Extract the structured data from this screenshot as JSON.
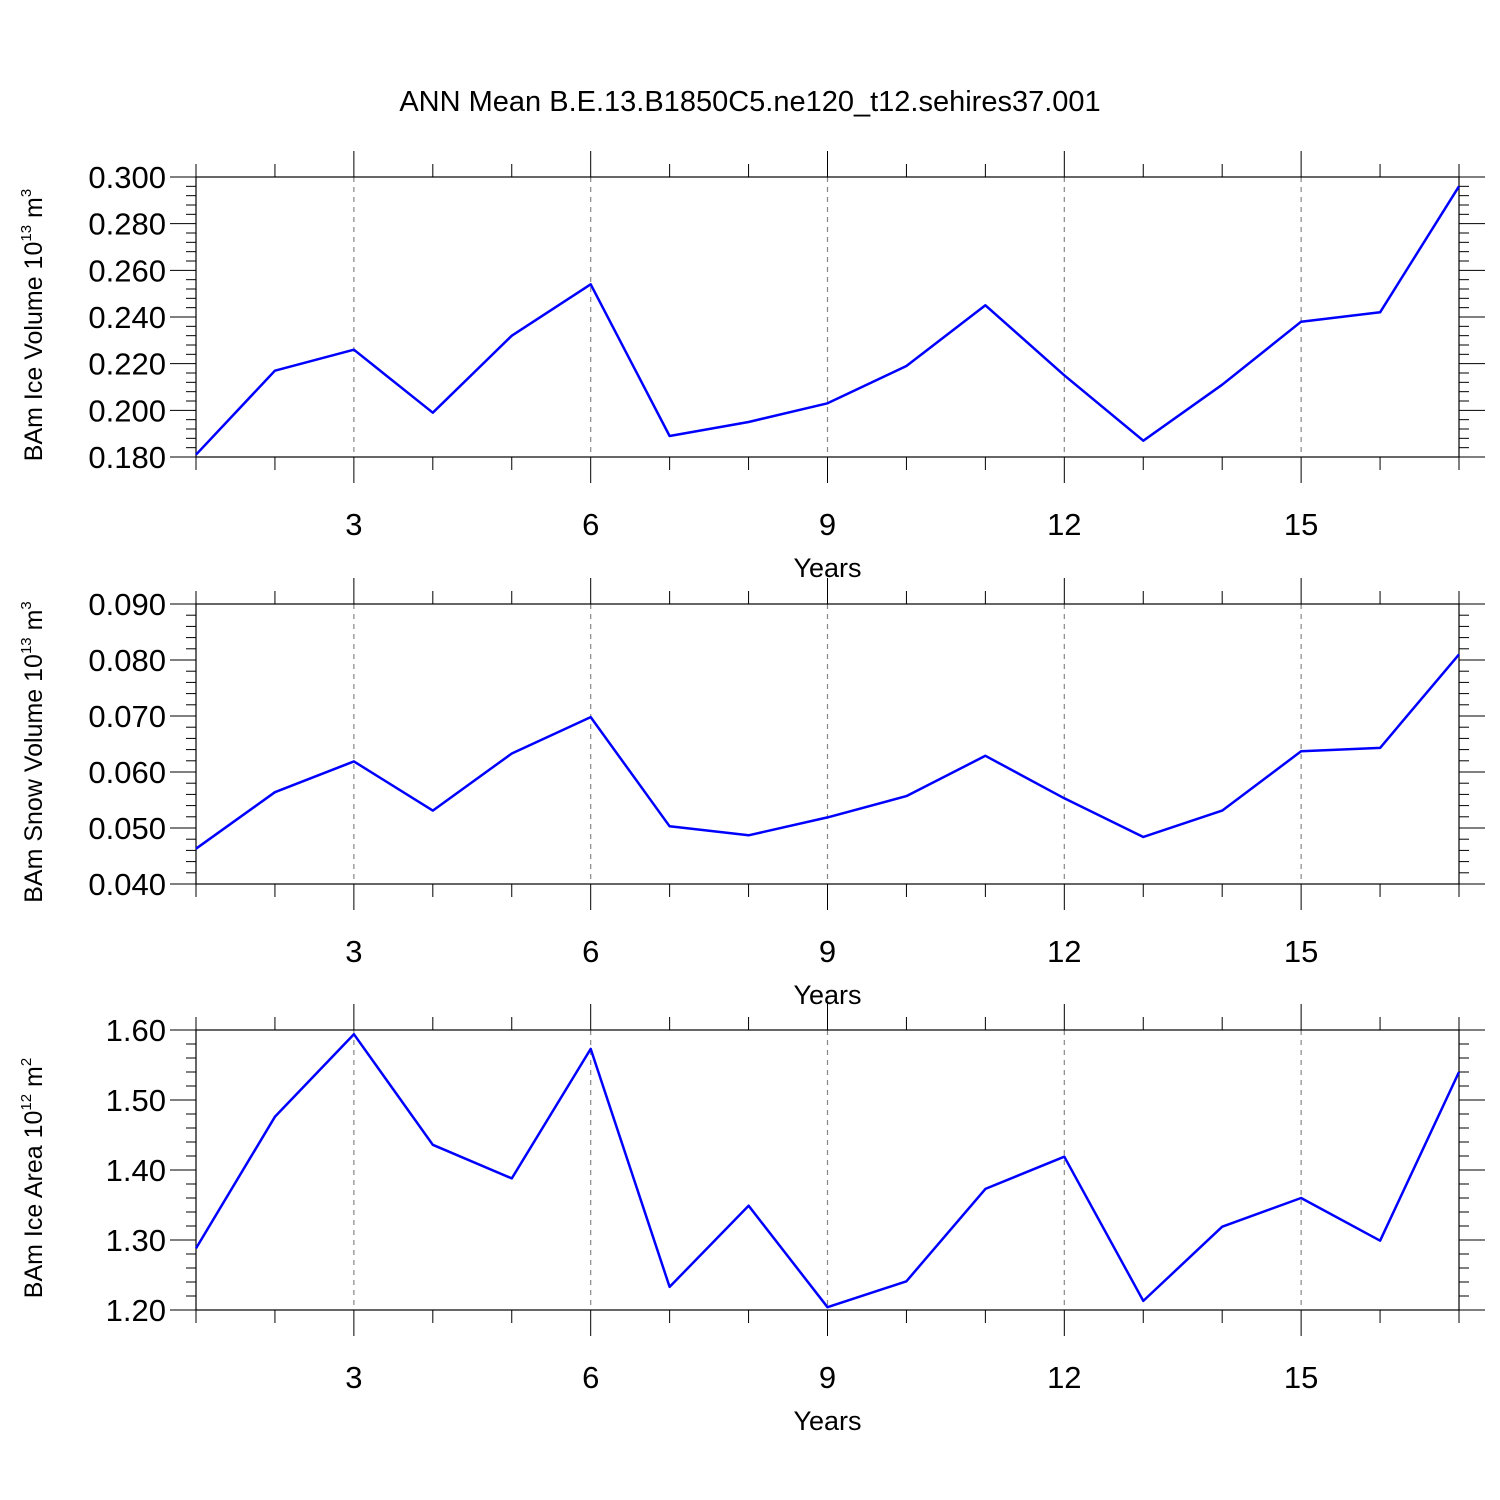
{
  "title": "ANN Mean B.E.13.B1850C5.ne120_t12.sehires37.001",
  "colors": {
    "series": "#0000ff",
    "grid": "#888888",
    "axis": "#000000"
  },
  "chart_data": [
    {
      "type": "line",
      "xlabel": "Years",
      "ylabel": {
        "text": "BAm Ice Volume 10",
        "sup1": "13",
        "unit": " m",
        "sup2": "3"
      },
      "x": [
        1,
        2,
        3,
        4,
        5,
        6,
        7,
        8,
        9,
        10,
        11,
        12,
        13,
        14,
        15,
        16,
        17
      ],
      "values": [
        0.181,
        0.217,
        0.226,
        0.199,
        0.232,
        0.254,
        0.189,
        0.195,
        0.203,
        0.219,
        0.245,
        0.215,
        0.187,
        0.211,
        0.238,
        0.242,
        0.296
      ],
      "xlim": [
        1,
        17
      ],
      "ylim": [
        0.18,
        0.3
      ],
      "xticks": [
        3,
        6,
        9,
        12,
        15
      ],
      "xtick_labels": [
        "3",
        "6",
        "9",
        "12",
        "15"
      ],
      "yticks": [
        0.18,
        0.2,
        0.22,
        0.24,
        0.26,
        0.28,
        0.3
      ],
      "ytick_labels": [
        "0.180",
        "0.200",
        "0.220",
        "0.240",
        "0.260",
        "0.280",
        "0.300"
      ],
      "yminor_step": 0.004,
      "grid": "x-major-dashed"
    },
    {
      "type": "line",
      "xlabel": "Years",
      "ylabel": {
        "text": "BAm Snow Volume 10",
        "sup1": "13",
        "unit": " m",
        "sup2": "3"
      },
      "x": [
        1,
        2,
        3,
        4,
        5,
        6,
        7,
        8,
        9,
        10,
        11,
        12,
        13,
        14,
        15,
        16,
        17
      ],
      "values": [
        0.0463,
        0.0564,
        0.0619,
        0.0531,
        0.0633,
        0.0698,
        0.0503,
        0.0487,
        0.0519,
        0.0557,
        0.0629,
        0.0553,
        0.0484,
        0.0531,
        0.0637,
        0.0643,
        0.081
      ],
      "xlim": [
        1,
        17
      ],
      "ylim": [
        0.04,
        0.09
      ],
      "xticks": [
        3,
        6,
        9,
        12,
        15
      ],
      "xtick_labels": [
        "3",
        "6",
        "9",
        "12",
        "15"
      ],
      "yticks": [
        0.04,
        0.05,
        0.06,
        0.07,
        0.08,
        0.09
      ],
      "ytick_labels": [
        "0.040",
        "0.050",
        "0.060",
        "0.070",
        "0.080",
        "0.090"
      ],
      "yminor_step": 0.002,
      "grid": "x-major-dashed"
    },
    {
      "type": "line",
      "xlabel": "Years",
      "ylabel": {
        "text": "BAm Ice Area 10",
        "sup1": "12",
        "unit": " m",
        "sup2": "2"
      },
      "x": [
        1,
        2,
        3,
        4,
        5,
        6,
        7,
        8,
        9,
        10,
        11,
        12,
        13,
        14,
        15,
        16,
        17
      ],
      "values": [
        1.288,
        1.476,
        1.594,
        1.436,
        1.388,
        1.573,
        1.233,
        1.349,
        1.204,
        1.241,
        1.373,
        1.419,
        1.213,
        1.319,
        1.36,
        1.299,
        1.54
      ],
      "xlim": [
        1,
        17
      ],
      "ylim": [
        1.2,
        1.6
      ],
      "xticks": [
        3,
        6,
        9,
        12,
        15
      ],
      "xtick_labels": [
        "3",
        "6",
        "9",
        "12",
        "15"
      ],
      "yticks": [
        1.2,
        1.3,
        1.4,
        1.5,
        1.6
      ],
      "ytick_labels": [
        "1.20",
        "1.30",
        "1.40",
        "1.50",
        "1.60"
      ],
      "yminor_step": 0.02,
      "grid": "x-major-dashed"
    }
  ]
}
